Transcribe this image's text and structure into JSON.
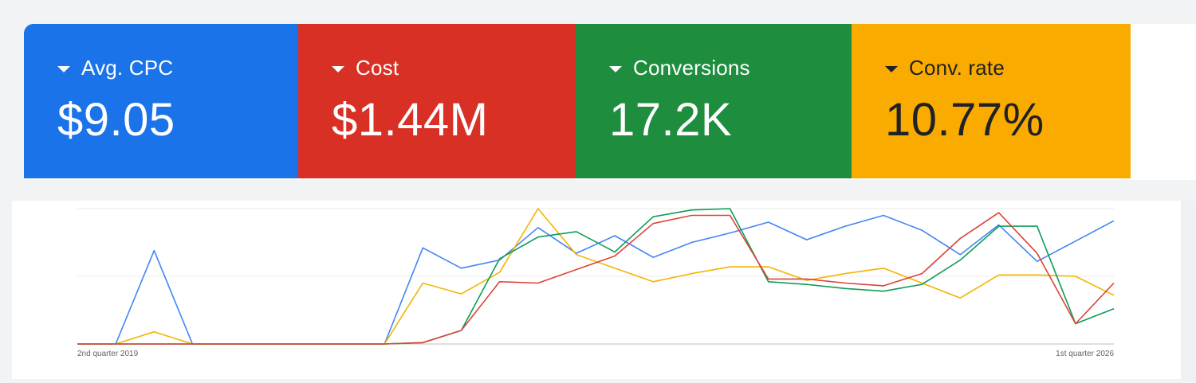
{
  "scorecards": [
    {
      "label": "Avg. CPC",
      "value": "$9.05",
      "color": "#1a73e8",
      "text_color": "#ffffff"
    },
    {
      "label": "Cost",
      "value": "$1.44M",
      "color": "#d93025",
      "text_color": "#ffffff"
    },
    {
      "label": "Conversions",
      "value": "17.2K",
      "color": "#1e8e3e",
      "text_color": "#ffffff"
    },
    {
      "label": "Conv. rate",
      "value": "10.77%",
      "color": "#f9ab00",
      "text_color": "#202124"
    }
  ],
  "chart_data": {
    "type": "line",
    "x_start_label": "2nd quarter 2019",
    "x_end_label": "1st quarter 2026",
    "grid": true,
    "ylim": [
      0,
      100
    ],
    "series": [
      {
        "color": "#4285f4",
        "values": [
          0,
          0,
          69,
          0,
          0,
          0,
          0,
          0,
          0,
          71,
          56,
          62,
          86,
          67,
          80,
          64,
          75,
          82,
          90,
          77,
          87,
          95,
          84,
          66,
          88,
          61,
          76,
          91
        ]
      },
      {
        "color": "#f4b400",
        "values": [
          0,
          0,
          9,
          0,
          0,
          0,
          0,
          0,
          0,
          45,
          37,
          53,
          100,
          66,
          56,
          46,
          52,
          57,
          57,
          47,
          52,
          56,
          45,
          34,
          51,
          51,
          50,
          36
        ]
      },
      {
        "color": "#0f9d58",
        "values": [
          0,
          0,
          0,
          0,
          0,
          0,
          0,
          0,
          0,
          1,
          10,
          63,
          79,
          83,
          68,
          94,
          99,
          100,
          46,
          44,
          41,
          39,
          44,
          62,
          87,
          87,
          15,
          26
        ]
      },
      {
        "color": "#db4437",
        "values": [
          0,
          0,
          0,
          0,
          0,
          0,
          0,
          0,
          0,
          1,
          10,
          46,
          45,
          55,
          65,
          89,
          95,
          95,
          48,
          48,
          45,
          43,
          52,
          78,
          97,
          67,
          15,
          45
        ]
      }
    ]
  }
}
